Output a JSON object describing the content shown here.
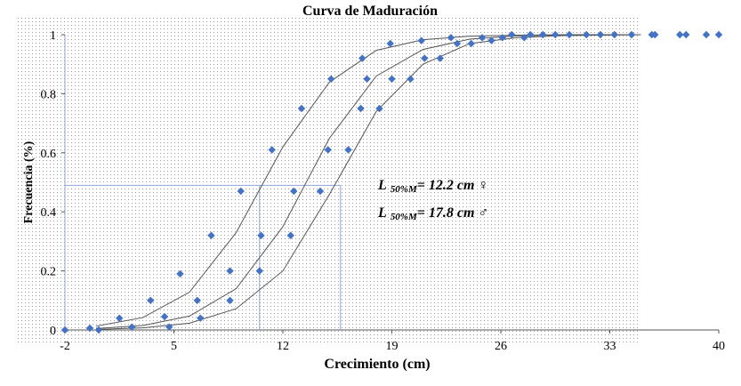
{
  "chart_data": {
    "type": "scatter",
    "title": "Curva de Maduración",
    "xlabel": "Crecimiento (cm)",
    "ylabel": "Frecuencia (%)",
    "xlim": [
      -2,
      40
    ],
    "xticks": [
      -2,
      5,
      12,
      19,
      26,
      33,
      40
    ],
    "ylim": [
      0,
      1
    ],
    "yticks": [
      0,
      0.2,
      0.4,
      0.6,
      0.8,
      1
    ],
    "points": {
      "color": "#4472c4",
      "x": [
        -2,
        -0.4,
        0.17,
        1.5,
        2.3,
        3.5,
        4.4,
        4.7,
        5.4,
        6.5,
        6.7,
        7.4,
        8.6,
        8.6,
        9.3,
        10.5,
        10.6,
        11.3,
        12.5,
        12.7,
        13.2,
        14.9,
        14.4,
        15.1,
        16.2,
        17,
        17.1,
        17.4,
        18.2,
        18.9,
        19,
        20.2,
        20.9,
        21.1,
        22.1,
        22.8,
        23.2,
        24.1,
        24.8,
        25.4,
        26.1,
        26.7,
        27.5,
        27.9,
        28.7,
        29.5,
        30.4,
        31.5,
        32.4,
        33.3,
        34.4,
        35.7,
        35.9,
        37.5,
        37.9,
        39.2,
        40
      ],
      "y": [
        0,
        0.006,
        0,
        0.04,
        0.01,
        0.1,
        0.045,
        0.01,
        0.19,
        0.1,
        0.04,
        0.32,
        0.2,
        0.1,
        0.47,
        0.2,
        0.32,
        0.61,
        0.32,
        0.47,
        0.75,
        0.61,
        0.47,
        0.85,
        0.61,
        0.75,
        0.92,
        0.85,
        0.75,
        0.97,
        0.85,
        0.85,
        0.98,
        0.92,
        0.92,
        0.99,
        0.97,
        0.97,
        0.99,
        0.98,
        0.99,
        1,
        0.99,
        1,
        1,
        1,
        1,
        1,
        1,
        1,
        1,
        1,
        1,
        1,
        1,
        1,
        1
      ]
    },
    "curves": [
      {
        "color": "#555555",
        "x": [
          0,
          3,
          6,
          9,
          12,
          15,
          18,
          21,
          24,
          27,
          30,
          35
        ],
        "values": [
          0.013,
          0.042,
          0.128,
          0.33,
          0.62,
          0.84,
          0.947,
          0.983,
          0.995,
          0.998,
          1,
          1
        ]
      },
      {
        "color": "#555555",
        "x": [
          0,
          3,
          6,
          9,
          12,
          15,
          18,
          21,
          24,
          27,
          30,
          35
        ],
        "values": [
          0.005,
          0.015,
          0.047,
          0.14,
          0.35,
          0.65,
          0.86,
          0.95,
          0.985,
          0.996,
          0.999,
          1
        ]
      },
      {
        "color": "#555555",
        "x": [
          0,
          3,
          6,
          9,
          12,
          15,
          18,
          21,
          24,
          27,
          30,
          35
        ],
        "values": [
          0.002,
          0.007,
          0.023,
          0.072,
          0.2,
          0.46,
          0.74,
          0.9,
          0.97,
          0.99,
          0.997,
          1
        ]
      }
    ],
    "reference": {
      "color": "#8eaadb",
      "y": 0.49,
      "x": [
        10.5,
        15.7
      ]
    },
    "annotations": [
      {
        "text": "L",
        "sub": "50%M",
        "rest": "= 12.2 cm ♀"
      },
      {
        "text": "L",
        "sub": "50%M",
        "rest": "= 17.8 cm ♂"
      }
    ]
  }
}
